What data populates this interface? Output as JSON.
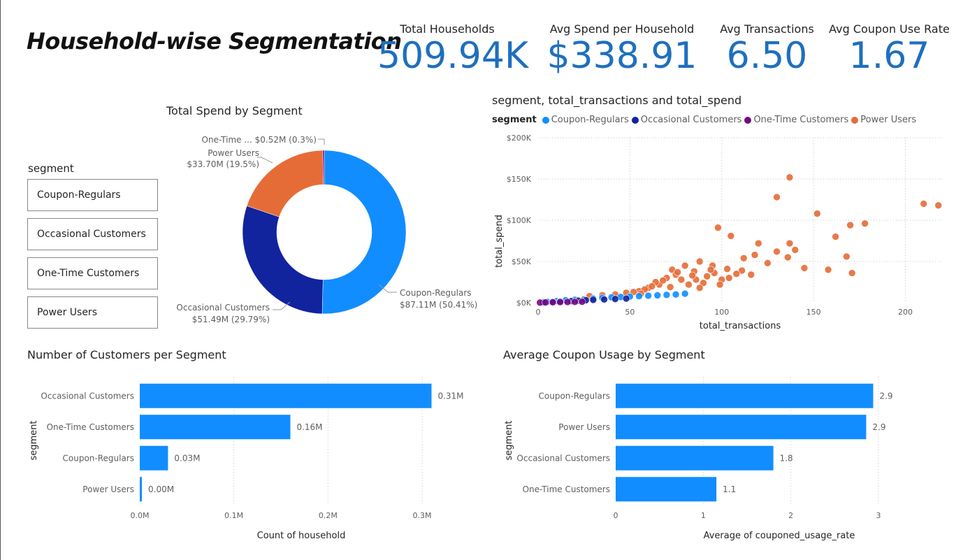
{
  "page": {
    "title": "Household-wise Segmentation"
  },
  "kpis": [
    {
      "label": "Total Households",
      "value": "509.94K"
    },
    {
      "label": "Avg Spend per Household",
      "value": "$338.91"
    },
    {
      "label": "Avg Transactions",
      "value": "6.50"
    },
    {
      "label": "Avg Coupon Use Rate",
      "value": "1.67"
    }
  ],
  "colors": {
    "coupon_regulars": "#118dff",
    "occasional_customers": "#12239e",
    "one_time_customers": "#750985",
    "power_users": "#e66c37",
    "kpi": "#1e6fbf"
  },
  "slicer": {
    "title": "segment",
    "items": [
      "Coupon-Regulars",
      "Occasional Customers",
      "One-Time Customers",
      "Power Users"
    ]
  },
  "donut": {
    "title": "Total Spend by Segment",
    "label_one_time": "One-Time ... $0.52M (0.3%)",
    "label_power_name": "Power Users",
    "label_power_val": "$33.70M (19.5%)",
    "label_coupon_name": "Coupon-Regulars",
    "label_coupon_val": "$87.11M (50.41%)",
    "label_occ_name": "Occasional Customers",
    "label_occ_val": "$51.49M (29.79%)"
  },
  "scatter": {
    "title": "segment, total_transactions and total_spend",
    "legend_title": "segment",
    "legend": [
      "Coupon-Regulars",
      "Occasional Customers",
      "One-Time Customers",
      "Power Users"
    ],
    "xlabel": "total_transactions",
    "ylabel": "total_spend",
    "xticks": [
      "0",
      "50",
      "100",
      "150",
      "200"
    ],
    "yticks": [
      "$0K",
      "$50K",
      "$100K",
      "$150K",
      "$200K"
    ]
  },
  "bar1": {
    "title": "Number of Customers per Segment",
    "ylabel": "segment",
    "xlabel": "Count of household",
    "xticks": [
      "0.0M",
      "0.1M",
      "0.2M",
      "0.3M"
    ]
  },
  "bar2": {
    "title": "Average Coupon Usage by Segment",
    "ylabel": "segment",
    "xlabel": "Average of couponed_usage_rate",
    "xticks": [
      "0",
      "1",
      "2",
      "3"
    ]
  },
  "chart_data": [
    {
      "type": "pie",
      "title": "Total Spend by Segment",
      "categories": [
        "Coupon-Regulars",
        "Occasional Customers",
        "Power Users",
        "One-Time Customers"
      ],
      "values": [
        87.11,
        51.49,
        33.7,
        0.52
      ],
      "labels": [
        "$87.11M (50.41%)",
        "$51.49M (29.79%)",
        "$33.70M (19.5%)",
        "$0.52M (0.3%)"
      ]
    },
    {
      "type": "scatter",
      "title": "segment, total_transactions and total_spend",
      "xlabel": "total_transactions",
      "ylabel": "total_spend",
      "xlim": [
        0,
        220
      ],
      "ylim": [
        0,
        200000
      ],
      "series": [
        {
          "name": "Power Users",
          "points": [
            [
              137,
              152000
            ],
            [
              130,
              128000
            ],
            [
              210,
              120000
            ],
            [
              218,
              118000
            ],
            [
              152,
              108000
            ],
            [
              178,
              96000
            ],
            [
              170,
              94000
            ],
            [
              98,
              91000
            ],
            [
              162,
              80000
            ],
            [
              105,
              81000
            ],
            [
              120,
              72000
            ],
            [
              140,
              64000
            ],
            [
              137,
              72000
            ],
            [
              130,
              62000
            ],
            [
              168,
              56000
            ],
            [
              118,
              58000
            ],
            [
              125,
              48000
            ],
            [
              136,
              55000
            ],
            [
              112,
              54000
            ],
            [
              145,
              42000
            ],
            [
              158,
              40000
            ],
            [
              171,
              36000
            ],
            [
              111,
              39000
            ],
            [
              116,
              34000
            ],
            [
              103,
              41000
            ],
            [
              95,
              45000
            ],
            [
              88,
              50000
            ],
            [
              80,
              45000
            ],
            [
              73,
              40000
            ],
            [
              85,
              38000
            ],
            [
              92,
              32000
            ],
            [
              100,
              28000
            ],
            [
              78,
              28000
            ],
            [
              66,
              22000
            ],
            [
              60,
              18000
            ],
            [
              55,
              14000
            ],
            [
              48,
              12000
            ],
            [
              42,
              10000
            ],
            [
              35,
              9000
            ],
            [
              28,
              8000
            ],
            [
              90,
              24000
            ],
            [
              70,
              30000
            ],
            [
              82,
              22000
            ],
            [
              96,
              36000
            ],
            [
              75,
              34000
            ],
            [
              64,
              25000
            ],
            [
              58,
              16000
            ],
            [
              52,
              13000
            ],
            [
              86,
              28000
            ],
            [
              94,
              40000
            ],
            [
              104,
              30000
            ],
            [
              108,
              35000
            ],
            [
              62,
              20000
            ],
            [
              68,
              27000
            ],
            [
              76,
              37000
            ],
            [
              84,
              33000
            ],
            [
              72,
              19000
            ],
            [
              88,
              18000
            ],
            [
              99,
              22000
            ],
            [
              56,
              11000
            ]
          ]
        },
        {
          "name": "Coupon-Regulars",
          "points": [
            [
              5,
              1000
            ],
            [
              10,
              2000
            ],
            [
              15,
              3000
            ],
            [
              20,
              3500
            ],
            [
              25,
              4000
            ],
            [
              30,
              5000
            ],
            [
              35,
              6000
            ],
            [
              40,
              6500
            ],
            [
              45,
              7000
            ],
            [
              50,
              7500
            ],
            [
              55,
              8000
            ],
            [
              60,
              8500
            ],
            [
              65,
              9000
            ],
            [
              70,
              9500
            ],
            [
              75,
              10000
            ],
            [
              80,
              11000
            ]
          ]
        },
        {
          "name": "Occasional Customers",
          "points": [
            [
              3,
              500
            ],
            [
              8,
              1000
            ],
            [
              12,
              1500
            ],
            [
              18,
              2000
            ],
            [
              22,
              2500
            ],
            [
              26,
              3000
            ],
            [
              30,
              3500
            ],
            [
              36,
              4000
            ],
            [
              42,
              4500
            ],
            [
              48,
              5000
            ]
          ]
        },
        {
          "name": "One-Time Customers",
          "points": [
            [
              1,
              200
            ],
            [
              4,
              400
            ],
            [
              8,
              600
            ],
            [
              12,
              800
            ],
            [
              16,
              900
            ],
            [
              20,
              1000
            ],
            [
              24,
              1200
            ]
          ]
        }
      ]
    },
    {
      "type": "bar",
      "title": "Number of Customers per Segment",
      "categories": [
        "Occasional Customers",
        "One-Time Customers",
        "Coupon-Regulars",
        "Power Users"
      ],
      "values": [
        0.31,
        0.16,
        0.03,
        0.0
      ],
      "labels": [
        "0.31M",
        "0.16M",
        "0.03M",
        "0.00M"
      ],
      "xlabel": "Count of household",
      "ylabel": "segment",
      "xlim": [
        0,
        0.3
      ]
    },
    {
      "type": "bar",
      "title": "Average Coupon Usage by Segment",
      "categories": [
        "Coupon-Regulars",
        "Power Users",
        "Occasional Customers",
        "One-Time Customers"
      ],
      "values": [
        2.94,
        2.86,
        1.8,
        1.15
      ],
      "labels": [
        "2.9",
        "2.9",
        "1.8",
        "1.1"
      ],
      "xlabel": "Average of couponed_usage_rate",
      "ylabel": "segment",
      "xlim": [
        0,
        3
      ]
    }
  ]
}
